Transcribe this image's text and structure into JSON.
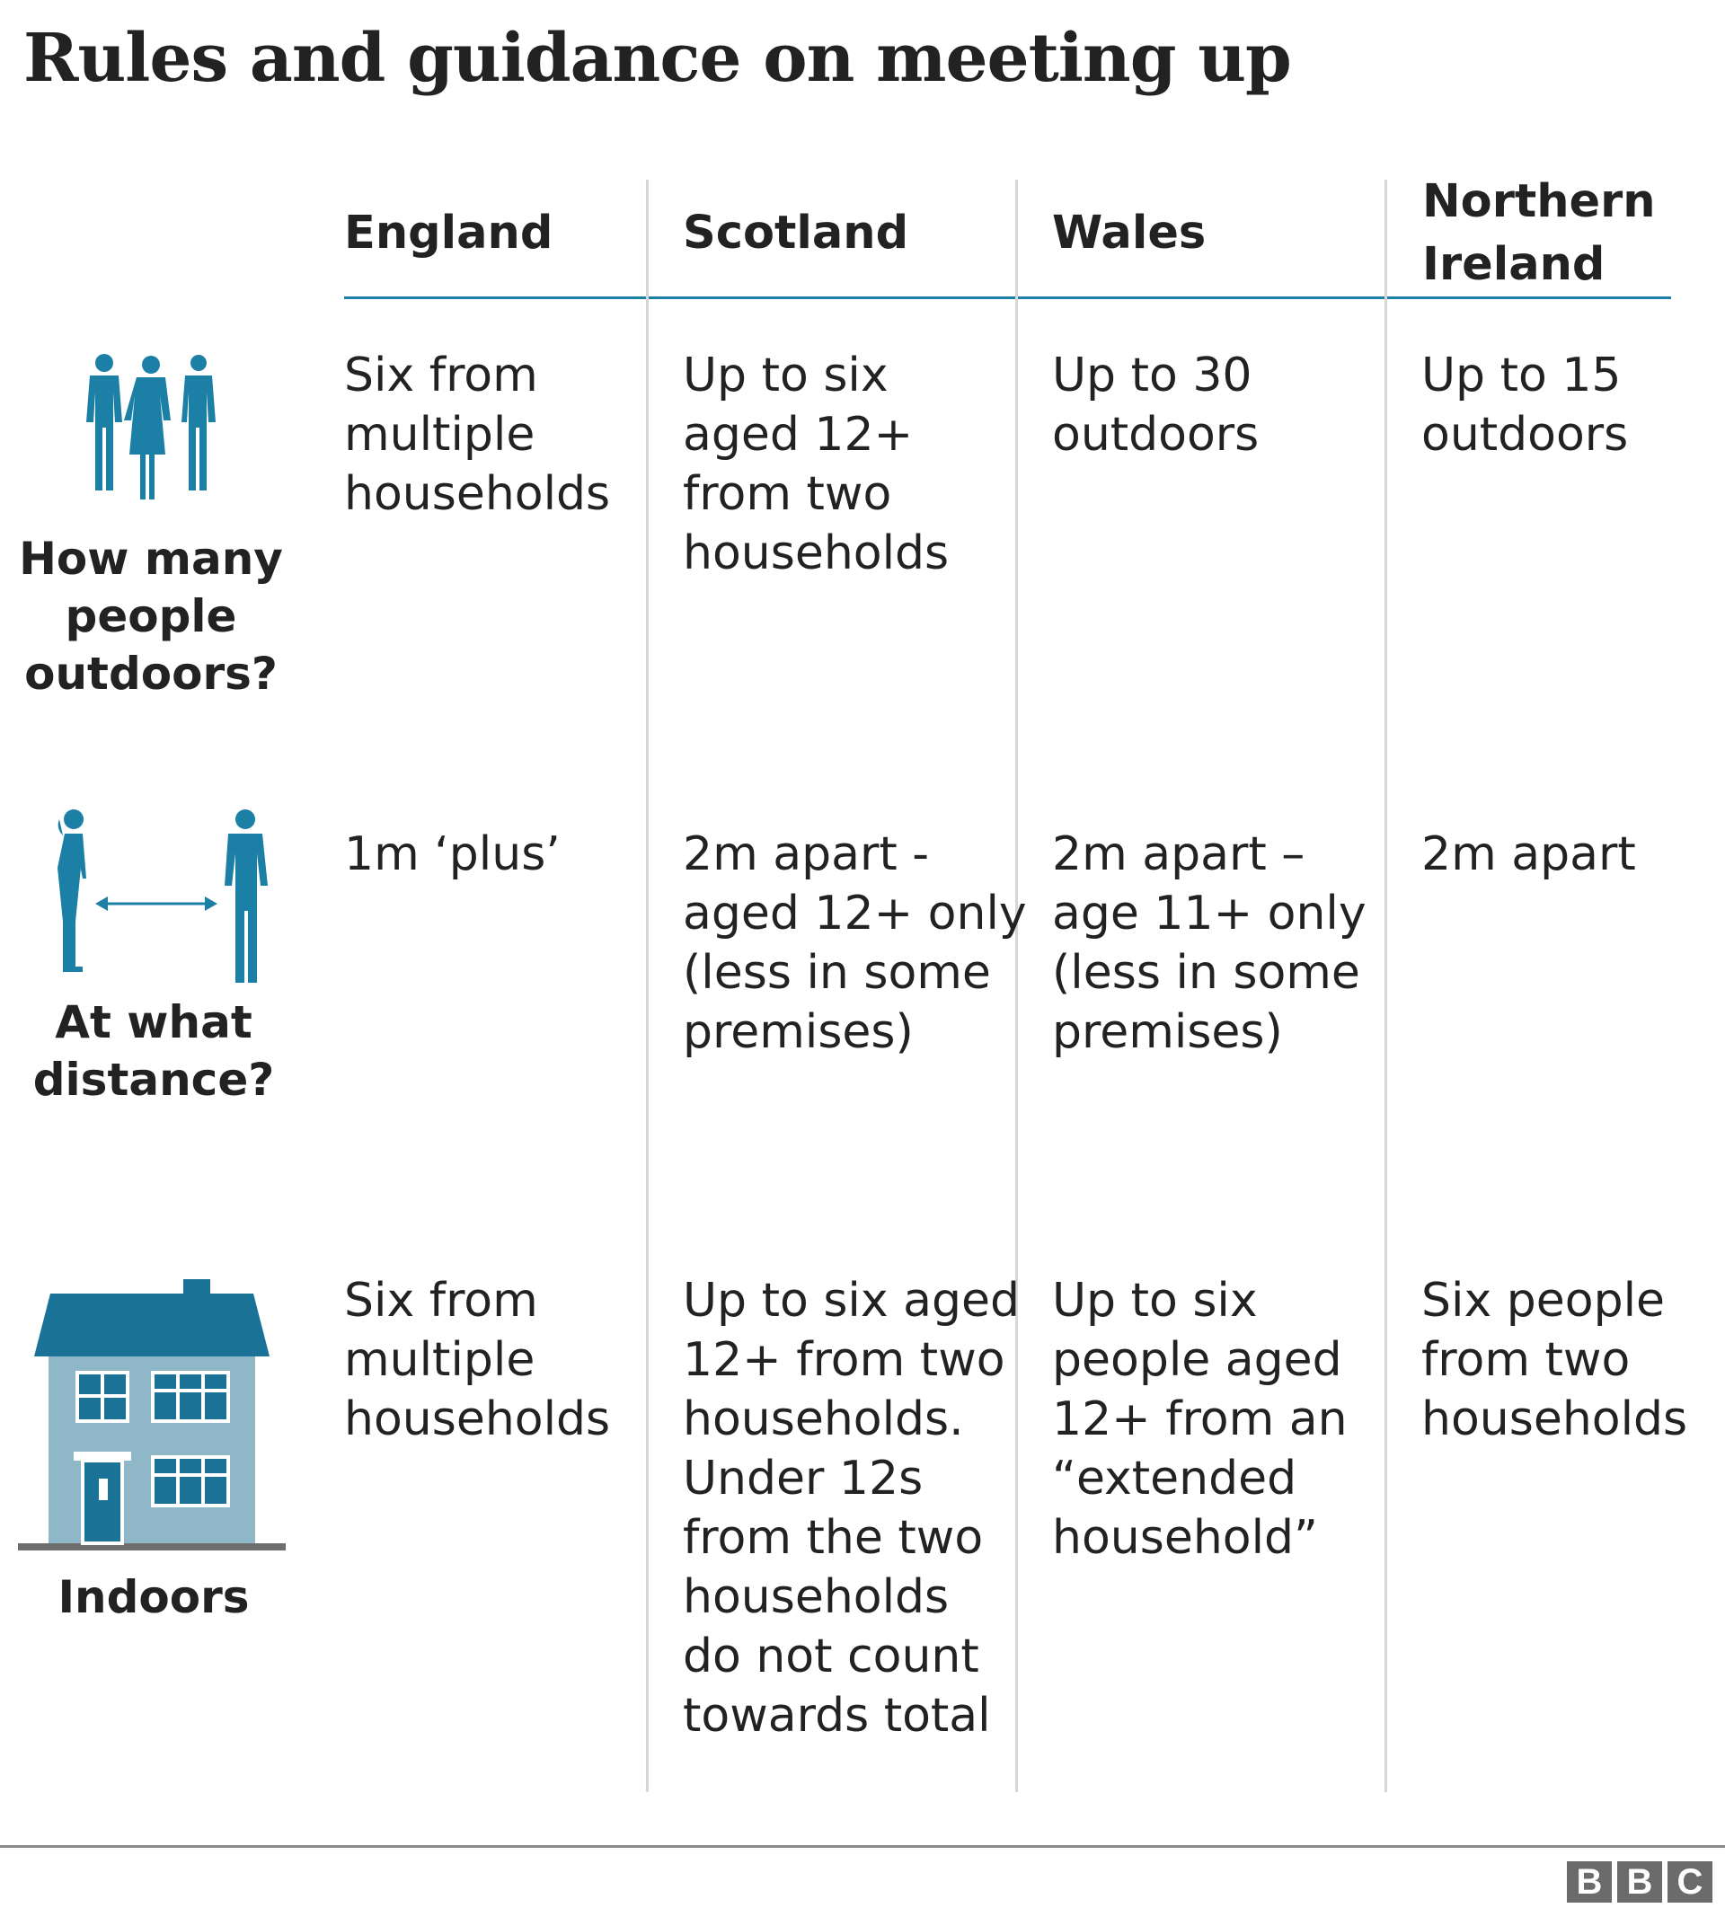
{
  "chart_data": {
    "type": "table",
    "title": "Rules and guidance on meeting up",
    "columns": [
      "England",
      "Scotland",
      "Wales",
      "Northern\nIreland"
    ],
    "rows": [
      {
        "label": "How many\npeople\noutdoors?",
        "icon": "three-people-icon",
        "cells": [
          "Six from\nmultiple\nhouseholds",
          "Up to six\naged 12+\nfrom two\nhouseholds",
          "Up to 30\noutdoors",
          "Up to 15\noutdoors"
        ]
      },
      {
        "label": "At what\ndistance?",
        "icon": "distance-people-icon",
        "cells": [
          "1m ‘plus’",
          "2m apart -\naged 12+ only\n(less in some\npremises)",
          "2m apart –\nage 11+ only\n(less in some\npremises)",
          "2m apart"
        ]
      },
      {
        "label": "Indoors",
        "icon": "house-icon",
        "cells": [
          "Six from\nmultiple\nhouseholds",
          "Up to six aged\n12+ from two\nhouseholds.\nUnder 12s\nfrom the two\nhouseholds\ndo not count\ntowards total",
          "Up to six\npeople aged\n12+ from an\n“extended\nhousehold”",
          "Six people\nfrom two\nhouseholds"
        ]
      }
    ]
  },
  "colors": {
    "icon_teal": "#1c7fa6",
    "house_roof": "#1a7296",
    "house_wall": "#8fb7c8",
    "divider": "#d6d6d6",
    "header_rule": "#1c7fa6"
  },
  "branding": {
    "logo_letters": [
      "B",
      "B",
      "C"
    ]
  }
}
